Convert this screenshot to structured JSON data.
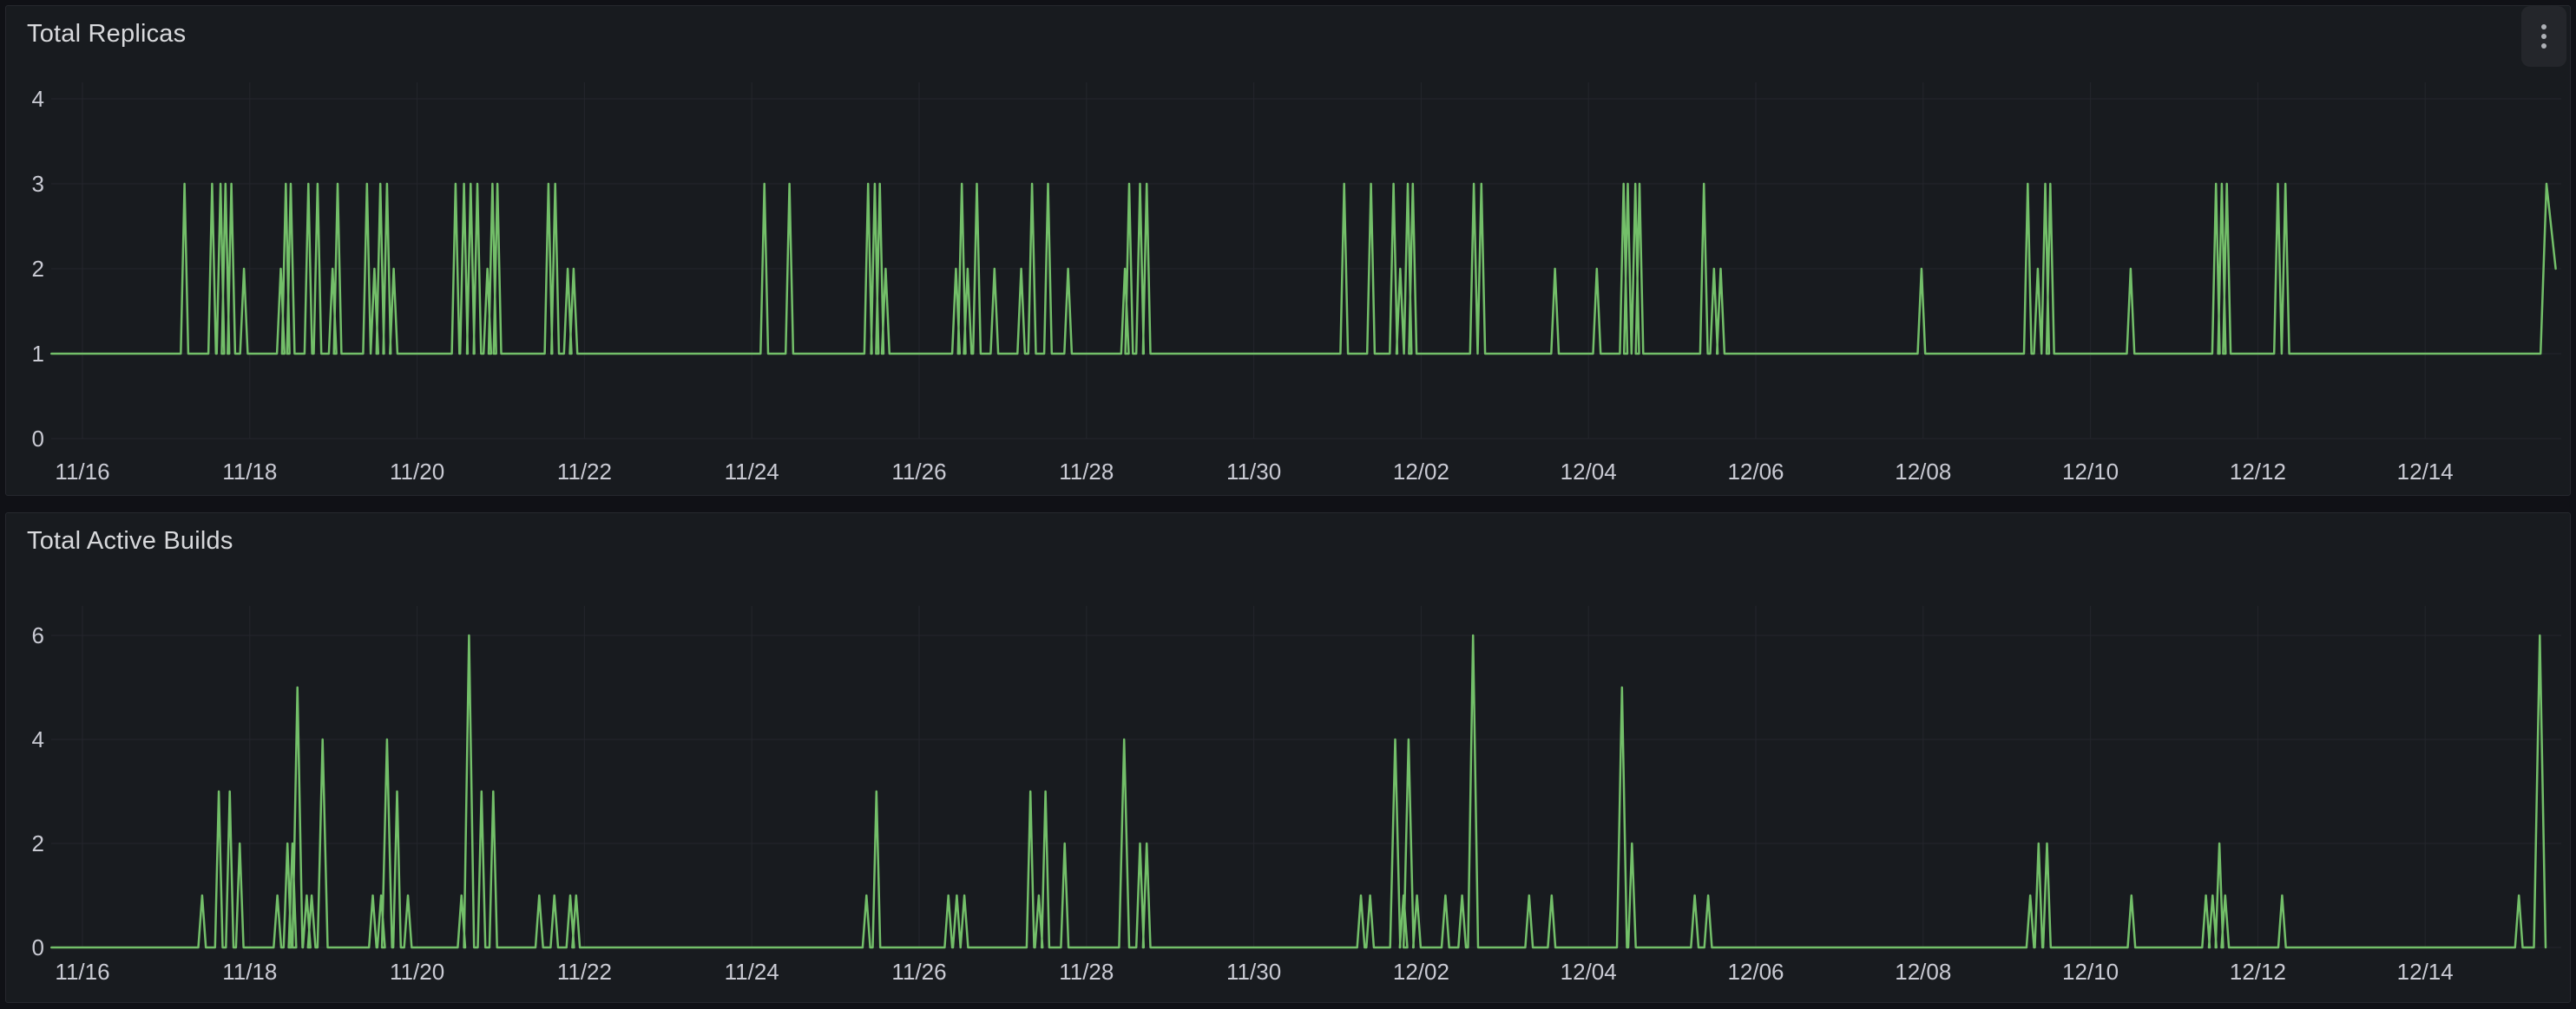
{
  "colors": {
    "page_bg": "#101116",
    "panel_bg": "#181B1F",
    "panel_border": "#26282E",
    "grid": "#24262C",
    "tick_text": "#C9CAD3",
    "title_text": "#D8D9DC",
    "line_green": "#73BF69",
    "menu_bg": "#24262B",
    "menu_dots": "#AEB0B6"
  },
  "panels": [
    {
      "title": "Total Replicas",
      "has_menu": true,
      "menu_icon": "kebab-menu-icon",
      "chart_data": {
        "type": "line",
        "title": "Total Replicas",
        "line_color": "#73BF69",
        "baseline": 1,
        "x_domain_days_from_11_16": [
          -0.37,
          29.63
        ],
        "x_ticks": [
          {
            "day": 0,
            "label": "11/16"
          },
          {
            "day": 2,
            "label": "11/18"
          },
          {
            "day": 4,
            "label": "11/20"
          },
          {
            "day": 6,
            "label": "11/22"
          },
          {
            "day": 8,
            "label": "11/24"
          },
          {
            "day": 10,
            "label": "11/26"
          },
          {
            "day": 12,
            "label": "11/28"
          },
          {
            "day": 14,
            "label": "11/30"
          },
          {
            "day": 16,
            "label": "12/02"
          },
          {
            "day": 18,
            "label": "12/04"
          },
          {
            "day": 20,
            "label": "12/06"
          },
          {
            "day": 22,
            "label": "12/08"
          },
          {
            "day": 24,
            "label": "12/10"
          },
          {
            "day": 26,
            "label": "12/12"
          },
          {
            "day": 28,
            "label": "12/14"
          }
        ],
        "y_ticks": [
          0,
          1,
          2,
          3,
          4
        ],
        "ylim": [
          0,
          4.2
        ],
        "grid": true,
        "legend": "none",
        "spikes_day_value": [
          [
            1.22,
            3
          ],
          [
            1.55,
            3
          ],
          [
            1.65,
            3
          ],
          [
            1.71,
            3
          ],
          [
            1.78,
            3
          ],
          [
            1.93,
            2
          ],
          [
            2.37,
            2
          ],
          [
            2.43,
            3
          ],
          [
            2.49,
            3
          ],
          [
            2.7,
            3
          ],
          [
            2.81,
            3
          ],
          [
            2.99,
            2
          ],
          [
            3.05,
            3
          ],
          [
            3.4,
            3
          ],
          [
            3.49,
            2
          ],
          [
            3.56,
            3
          ],
          [
            3.64,
            3
          ],
          [
            3.72,
            2
          ],
          [
            4.46,
            3
          ],
          [
            4.56,
            3
          ],
          [
            4.64,
            3
          ],
          [
            4.72,
            3
          ],
          [
            4.84,
            2
          ],
          [
            4.9,
            3
          ],
          [
            4.96,
            3
          ],
          [
            5.57,
            3
          ],
          [
            5.65,
            3
          ],
          [
            5.8,
            2
          ],
          [
            5.87,
            2
          ],
          [
            8.15,
            3
          ],
          [
            8.45,
            3
          ],
          [
            9.39,
            3
          ],
          [
            9.47,
            3
          ],
          [
            9.53,
            3
          ],
          [
            9.6,
            2
          ],
          [
            10.44,
            2
          ],
          [
            10.51,
            3
          ],
          [
            10.58,
            2
          ],
          [
            10.69,
            3
          ],
          [
            10.9,
            2
          ],
          [
            11.22,
            2
          ],
          [
            11.35,
            3
          ],
          [
            11.54,
            3
          ],
          [
            11.78,
            2
          ],
          [
            12.46,
            2
          ],
          [
            12.51,
            3
          ],
          [
            12.64,
            3
          ],
          [
            12.72,
            3
          ],
          [
            15.08,
            3
          ],
          [
            15.4,
            3
          ],
          [
            15.67,
            3
          ],
          [
            15.75,
            2
          ],
          [
            15.84,
            3
          ],
          [
            15.9,
            3
          ],
          [
            16.63,
            3
          ],
          [
            16.72,
            3
          ],
          [
            17.6,
            2
          ],
          [
            18.1,
            2
          ],
          [
            18.42,
            3
          ],
          [
            18.47,
            3
          ],
          [
            18.56,
            3
          ],
          [
            18.61,
            3
          ],
          [
            19.38,
            3
          ],
          [
            19.5,
            2
          ],
          [
            19.58,
            2
          ],
          [
            21.98,
            2
          ],
          [
            23.25,
            3
          ],
          [
            23.37,
            2
          ],
          [
            23.46,
            3
          ],
          [
            23.52,
            3
          ],
          [
            24.48,
            2
          ],
          [
            25.5,
            3
          ],
          [
            25.57,
            3
          ],
          [
            25.63,
            3
          ],
          [
            26.24,
            3
          ],
          [
            26.33,
            3
          ]
        ],
        "tail_points": [
          [
            29.38,
            1
          ],
          [
            29.45,
            3
          ],
          [
            29.56,
            2
          ]
        ]
      }
    },
    {
      "title": "Total Active Builds",
      "has_menu": false,
      "chart_data": {
        "type": "line",
        "title": "Total Active Builds",
        "line_color": "#73BF69",
        "baseline": 0,
        "x_domain_days_from_11_16": [
          -0.37,
          29.63
        ],
        "x_ticks": [
          {
            "day": 0,
            "label": "11/16"
          },
          {
            "day": 2,
            "label": "11/18"
          },
          {
            "day": 4,
            "label": "11/20"
          },
          {
            "day": 6,
            "label": "11/22"
          },
          {
            "day": 8,
            "label": "11/24"
          },
          {
            "day": 10,
            "label": "11/26"
          },
          {
            "day": 12,
            "label": "11/28"
          },
          {
            "day": 14,
            "label": "11/30"
          },
          {
            "day": 16,
            "label": "12/02"
          },
          {
            "day": 18,
            "label": "12/04"
          },
          {
            "day": 20,
            "label": "12/06"
          },
          {
            "day": 22,
            "label": "12/08"
          },
          {
            "day": 24,
            "label": "12/10"
          },
          {
            "day": 26,
            "label": "12/12"
          },
          {
            "day": 28,
            "label": "12/14"
          }
        ],
        "y_ticks": [
          0,
          2,
          4,
          6
        ],
        "ylim": [
          0,
          6.3
        ],
        "grid": true,
        "legend": "none",
        "spikes_day_value": [
          [
            1.43,
            1
          ],
          [
            1.63,
            3
          ],
          [
            1.76,
            3
          ],
          [
            1.88,
            2
          ],
          [
            2.33,
            1
          ],
          [
            2.45,
            2
          ],
          [
            2.51,
            2
          ],
          [
            2.57,
            5
          ],
          [
            2.68,
            1
          ],
          [
            2.74,
            1
          ],
          [
            2.87,
            4
          ],
          [
            3.47,
            1
          ],
          [
            3.57,
            1
          ],
          [
            3.64,
            4
          ],
          [
            3.76,
            3
          ],
          [
            3.89,
            1
          ],
          [
            4.53,
            1
          ],
          [
            4.62,
            6
          ],
          [
            4.77,
            3
          ],
          [
            4.91,
            3
          ],
          [
            5.46,
            1
          ],
          [
            5.64,
            1
          ],
          [
            5.83,
            1
          ],
          [
            5.9,
            1
          ],
          [
            9.37,
            1
          ],
          [
            9.49,
            3
          ],
          [
            10.35,
            1
          ],
          [
            10.45,
            1
          ],
          [
            10.54,
            1
          ],
          [
            11.33,
            3
          ],
          [
            11.43,
            1
          ],
          [
            11.51,
            3
          ],
          [
            11.74,
            2
          ],
          [
            12.45,
            4
          ],
          [
            12.64,
            2
          ],
          [
            12.72,
            2
          ],
          [
            15.28,
            1
          ],
          [
            15.39,
            1
          ],
          [
            15.69,
            4
          ],
          [
            15.79,
            1
          ],
          [
            15.85,
            4
          ],
          [
            15.95,
            1
          ],
          [
            16.29,
            1
          ],
          [
            16.49,
            1
          ],
          [
            16.62,
            6
          ],
          [
            17.29,
            1
          ],
          [
            17.56,
            1
          ],
          [
            18.4,
            5
          ],
          [
            18.52,
            2
          ],
          [
            19.27,
            1
          ],
          [
            19.43,
            1
          ],
          [
            23.28,
            1
          ],
          [
            23.38,
            2
          ],
          [
            23.48,
            2
          ],
          [
            24.49,
            1
          ],
          [
            25.38,
            1
          ],
          [
            25.46,
            1
          ],
          [
            25.54,
            2
          ],
          [
            25.61,
            1
          ],
          [
            26.29,
            1
          ],
          [
            29.12,
            1
          ]
        ],
        "tail_points": [
          [
            29.3,
            0
          ],
          [
            29.37,
            6
          ],
          [
            29.44,
            0
          ]
        ]
      }
    }
  ]
}
